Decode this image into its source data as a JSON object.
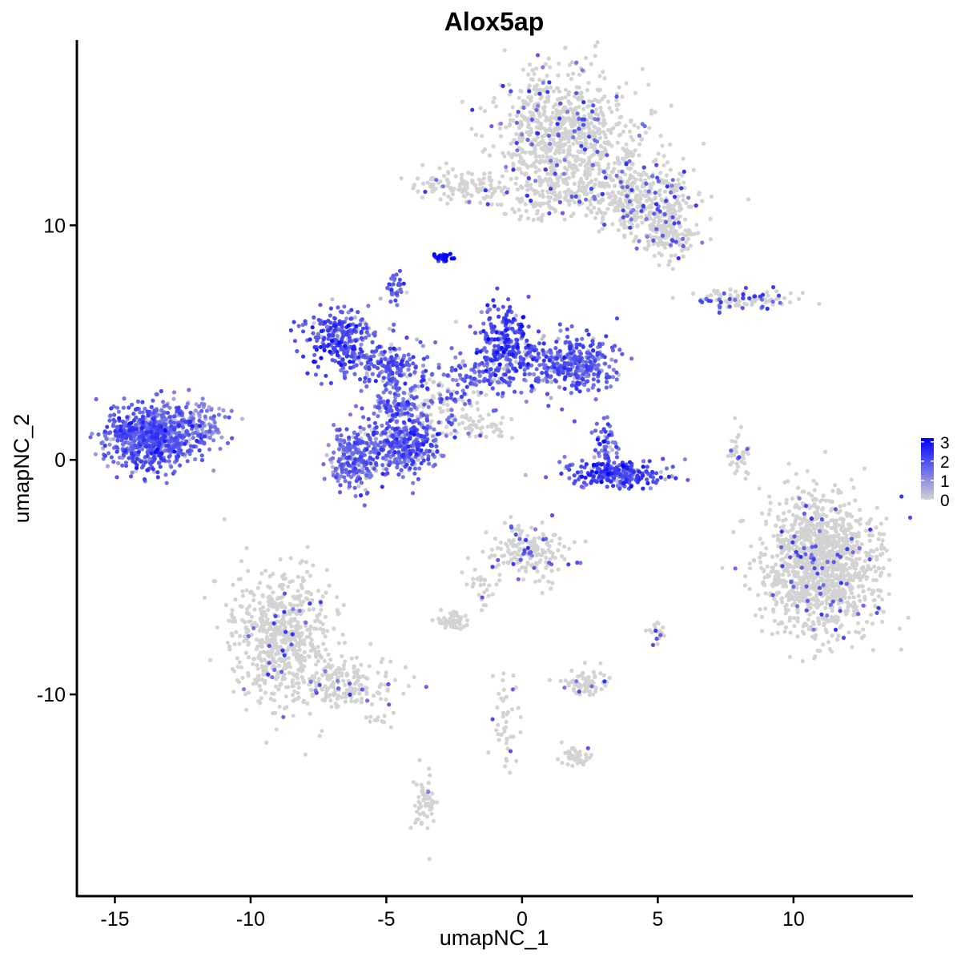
{
  "chart_data": {
    "type": "scatter",
    "title": "Alox5ap",
    "xlabel": "umapNC_1",
    "ylabel": "umapNC_2",
    "xlim": [
      -16.4,
      14.4
    ],
    "ylim": [
      -18.6,
      17.9
    ],
    "x_ticks": [
      -15,
      -10,
      -5,
      0,
      5,
      10
    ],
    "x_tick_labels": [
      "-15",
      "-10",
      "-5",
      "0",
      "5",
      "10"
    ],
    "y_ticks": [
      -10,
      0,
      10
    ],
    "y_tick_labels": [
      "-10",
      "0",
      "10"
    ],
    "grid": false,
    "legend": {
      "placement": "right",
      "type": "colorbar",
      "min": 0,
      "max": 3.2,
      "ticks": [
        0,
        1,
        2,
        3
      ],
      "tick_labels": [
        "0",
        "1",
        "2",
        "3"
      ],
      "low_color": "#d3d3d3",
      "high_color": "#0000ff"
    },
    "colors": {
      "low": "#d3d3d3",
      "mid": "#8c67ee",
      "high": "#2b13f5"
    },
    "clusters": [
      {
        "label": "top-right-large",
        "cx": 1.6,
        "cy": 13.8,
        "sx": 1.3,
        "sy": 1.4,
        "n": 900,
        "expr": 0.1
      },
      {
        "label": "top-right-tail",
        "cx": 4.4,
        "cy": 11.2,
        "sx": 1.0,
        "sy": 0.8,
        "n": 380,
        "expr": 0.15
      },
      {
        "label": "top-right-arm",
        "cx": 5.3,
        "cy": 9.6,
        "sx": 0.5,
        "sy": 0.5,
        "n": 160,
        "expr": 0.1
      },
      {
        "label": "top-center-strip",
        "cx": -2.2,
        "cy": 11.7,
        "sx": 1.0,
        "sy": 0.3,
        "n": 120,
        "expr": 0.08
      },
      {
        "label": "top-center-bridge",
        "cx": 0.7,
        "cy": 11.0,
        "sx": 1.0,
        "sy": 0.4,
        "n": 90,
        "expr": 0.05
      },
      {
        "label": "tiny-high-cluster",
        "cx": -2.9,
        "cy": 8.6,
        "sx": 0.2,
        "sy": 0.1,
        "n": 30,
        "expr": 2.9
      },
      {
        "label": "small-purple-top",
        "cx": -4.7,
        "cy": 7.3,
        "sx": 0.2,
        "sy": 0.3,
        "n": 35,
        "expr": 1.8
      },
      {
        "label": "left-far-cluster",
        "cx": -13.6,
        "cy": 1.0,
        "sx": 0.9,
        "sy": 0.65,
        "n": 750,
        "expr": 1.7
      },
      {
        "label": "left-far-tail",
        "cx": -12.0,
        "cy": 1.7,
        "sx": 0.5,
        "sy": 0.5,
        "n": 90,
        "expr": 1.0
      },
      {
        "label": "center-left-arm",
        "cx": -6.8,
        "cy": 5.2,
        "sx": 0.7,
        "sy": 0.6,
        "n": 240,
        "expr": 1.9
      },
      {
        "label": "center-left-branch",
        "cx": -5.2,
        "cy": 4.0,
        "sx": 0.8,
        "sy": 0.5,
        "n": 160,
        "expr": 1.8
      },
      {
        "label": "center-mid",
        "cx": -4.5,
        "cy": 2.2,
        "sx": 0.5,
        "sy": 0.8,
        "n": 150,
        "expr": 1.7
      },
      {
        "label": "center-lower-left",
        "cx": -6.1,
        "cy": 0.1,
        "sx": 0.5,
        "sy": 0.7,
        "n": 240,
        "expr": 1.6
      },
      {
        "label": "center-lower-right",
        "cx": -4.3,
        "cy": 0.6,
        "sx": 0.6,
        "sy": 0.6,
        "n": 300,
        "expr": 1.7
      },
      {
        "label": "center-right-arm",
        "cx": -0.6,
        "cy": 5.1,
        "sx": 0.5,
        "sy": 0.8,
        "n": 220,
        "expr": 2.1
      },
      {
        "label": "center-right-band",
        "cx": -0.8,
        "cy": 3.8,
        "sx": 1.4,
        "sy": 0.5,
        "n": 180,
        "expr": 1.6
      },
      {
        "label": "right-arm-end",
        "cx": 2.0,
        "cy": 4.1,
        "sx": 0.7,
        "sy": 0.6,
        "n": 280,
        "expr": 1.7
      },
      {
        "label": "center-stalk",
        "cx": -2.8,
        "cy": 2.6,
        "sx": 0.8,
        "sy": 0.5,
        "n": 90,
        "expr": 0.4
      },
      {
        "label": "diagonal-streak",
        "cx": -1.8,
        "cy": 1.3,
        "sx": 0.7,
        "sy": 0.3,
        "n": 60,
        "expr": 0.2
      },
      {
        "label": "crescent",
        "cx": 3.5,
        "cy": -0.6,
        "sx": 0.9,
        "sy": 0.3,
        "n": 240,
        "expr": 2.0
      },
      {
        "label": "crescent-top",
        "cx": 3.1,
        "cy": 0.6,
        "sx": 0.3,
        "sy": 0.5,
        "n": 50,
        "expr": 1.9
      },
      {
        "label": "right-mid-streak",
        "cx": 8.2,
        "cy": 6.8,
        "sx": 0.9,
        "sy": 0.2,
        "n": 100,
        "expr": 0.3
      },
      {
        "label": "right-small-arc",
        "cx": 8.0,
        "cy": 0.2,
        "sx": 0.2,
        "sy": 0.5,
        "n": 40,
        "expr": 0.1
      },
      {
        "label": "right-large",
        "cx": 11.0,
        "cy": -4.5,
        "sx": 1.05,
        "sy": 1.5,
        "n": 1300,
        "expr": 0.06
      },
      {
        "label": "bottom-left-large",
        "cx": -8.8,
        "cy": -7.5,
        "sx": 0.9,
        "sy": 1.4,
        "n": 650,
        "expr": 0.03
      },
      {
        "label": "bottom-left-tail",
        "cx": -6.5,
        "cy": -9.6,
        "sx": 1.0,
        "sy": 0.5,
        "n": 180,
        "expr": 0.08
      },
      {
        "label": "center-bottom-cluster",
        "cx": 0.3,
        "cy": -3.9,
        "sx": 0.7,
        "sy": 0.6,
        "n": 180,
        "expr": 0.15
      },
      {
        "label": "center-bottom-small",
        "cx": -2.6,
        "cy": -6.9,
        "sx": 0.3,
        "sy": 0.2,
        "n": 50,
        "expr": 0.05
      },
      {
        "label": "center-bottom-strand",
        "cx": -1.5,
        "cy": -5.5,
        "sx": 0.3,
        "sy": 0.6,
        "n": 30,
        "expr": 0.05
      },
      {
        "label": "bottom-mid-cluster",
        "cx": 2.3,
        "cy": -9.5,
        "sx": 0.4,
        "sy": 0.3,
        "n": 70,
        "expr": 0.1
      },
      {
        "label": "bottom-mid-strand",
        "cx": -0.6,
        "cy": -11.2,
        "sx": 0.3,
        "sy": 0.9,
        "n": 45,
        "expr": 0.1
      },
      {
        "label": "bottom-mid-foot",
        "cx": 2.0,
        "cy": -12.6,
        "sx": 0.3,
        "sy": 0.2,
        "n": 40,
        "expr": 0.03
      },
      {
        "label": "bottom-cluster",
        "cx": -3.6,
        "cy": -14.6,
        "sx": 0.2,
        "sy": 0.6,
        "n": 60,
        "expr": 0.05
      },
      {
        "label": "right-small-bottom",
        "cx": 5.0,
        "cy": -7.3,
        "sx": 0.15,
        "sy": 0.3,
        "n": 18,
        "expr": 0.3
      },
      {
        "label": "bottom-scatter",
        "cx": -5.2,
        "cy": -11.2,
        "sx": 0.3,
        "sy": 0.2,
        "n": 10,
        "expr": 0.02
      }
    ]
  }
}
